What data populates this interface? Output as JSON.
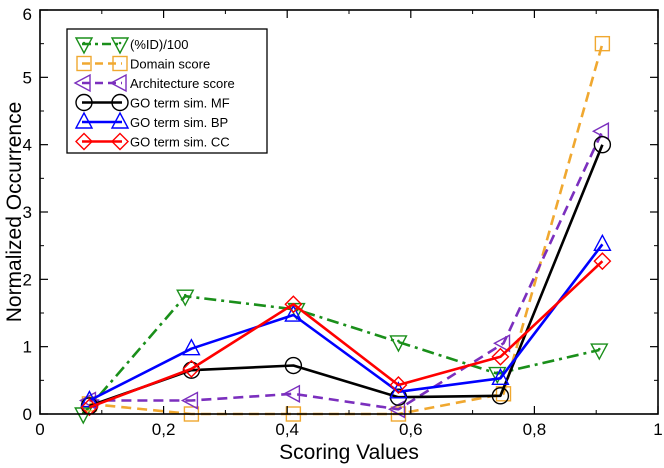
{
  "chart_data": {
    "type": "line",
    "title": "",
    "xlabel": "Scoring Values",
    "ylabel": "Normalized Occurrence",
    "xlim": [
      0,
      1
    ],
    "ylim": [
      0,
      6
    ],
    "xticks": [
      0,
      0.2,
      0.4,
      0.6,
      0.8,
      1
    ],
    "xtick_labels": [
      "0",
      "0,2",
      "0,4",
      "0,6",
      "0,8",
      "1"
    ],
    "yticks": [
      0,
      1,
      2,
      3,
      4,
      5,
      6
    ],
    "ytick_labels": [
      "0",
      "1",
      "2",
      "3",
      "4",
      "5",
      "6"
    ],
    "grid": false,
    "legend_position": "top-left",
    "series": [
      {
        "name": "(%ID)/100",
        "color": "#1a8f1a",
        "dash": "dashdot",
        "marker": "triangle-down-dot",
        "x": [
          0.07,
          0.235,
          0.415,
          0.58,
          0.74,
          0.905
        ],
        "y": [
          0.0,
          1.75,
          1.55,
          1.07,
          0.6,
          0.95
        ]
      },
      {
        "name": "Domain score",
        "color": "#f0a830",
        "dash": "dashed",
        "marker": "square",
        "x": [
          0.08,
          0.245,
          0.41,
          0.58,
          0.75,
          0.91
        ],
        "y": [
          0.15,
          0.0,
          0.0,
          0.0,
          0.3,
          5.5
        ]
      },
      {
        "name": "Architecture score",
        "color": "#7b2fbe",
        "dash": "dashed",
        "marker": "triangle-left",
        "x": [
          0.08,
          0.245,
          0.41,
          0.58,
          0.75,
          0.91
        ],
        "y": [
          0.2,
          0.2,
          0.3,
          0.07,
          1.05,
          4.2
        ]
      },
      {
        "name": "GO term sim. MF",
        "color": "#000000",
        "dash": "solid",
        "marker": "circle",
        "x": [
          0.08,
          0.245,
          0.41,
          0.58,
          0.745,
          0.91
        ],
        "y": [
          0.12,
          0.65,
          0.72,
          0.25,
          0.27,
          4.0
        ]
      },
      {
        "name": "GO term sim. BP",
        "color": "#0000ff",
        "dash": "solid",
        "marker": "triangle-up",
        "x": [
          0.08,
          0.245,
          0.41,
          0.58,
          0.745,
          0.91
        ],
        "y": [
          0.2,
          0.97,
          1.47,
          0.33,
          0.53,
          2.52
        ]
      },
      {
        "name": "GO term sim. CC",
        "color": "#ff0000",
        "dash": "solid",
        "marker": "diamond",
        "x": [
          0.08,
          0.245,
          0.41,
          0.58,
          0.745,
          0.91
        ],
        "y": [
          0.1,
          0.67,
          1.63,
          0.43,
          0.85,
          2.27
        ]
      }
    ]
  }
}
